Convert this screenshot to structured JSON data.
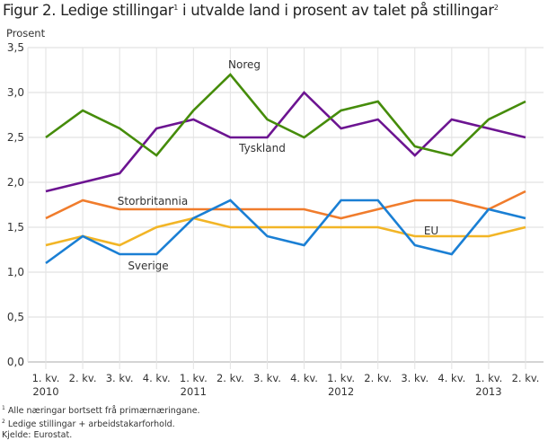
{
  "title": {
    "text": "Figur 2. Ledige stillingar",
    "sup1": "1",
    "mid": " i utvalde land i prosent av talet på stillingar",
    "sup2": "2"
  },
  "footnotes": [
    {
      "sup": "1",
      "text": " Alle næringar bortsett frå primærnæringane."
    },
    {
      "sup": "2",
      "text": " Ledige stillingar + arbeidstakarforhold."
    },
    {
      "sup": "",
      "text": "Kjelde: Eurostat."
    }
  ],
  "chart_data": {
    "type": "line",
    "title": "Figur 2. Ledige stillingar1 i utvalde land i prosent av talet på stillingar2",
    "ylabel": "Prosent",
    "xlabel": "",
    "ylim": [
      0,
      3.5
    ],
    "yticks": [
      "0,0",
      "0,5",
      "1,0",
      "1,5",
      "2,0",
      "2,5",
      "3,0",
      "3,5"
    ],
    "grid": true,
    "legend": "inline labels",
    "categories": [
      [
        "1. kv.",
        "2010"
      ],
      [
        "2. kv.",
        ""
      ],
      [
        "3. kv.",
        ""
      ],
      [
        "4. kv.",
        ""
      ],
      [
        "1. kv.",
        "2011"
      ],
      [
        "2. kv.",
        ""
      ],
      [
        "3. kv.",
        ""
      ],
      [
        "4. kv.",
        ""
      ],
      [
        "1. kv.",
        "2012"
      ],
      [
        "2. kv.",
        ""
      ],
      [
        "3. kv.",
        ""
      ],
      [
        "4. kv.",
        ""
      ],
      [
        "1. kv.",
        "2013"
      ],
      [
        "2. kv.",
        ""
      ]
    ],
    "series": [
      {
        "name": "Noreg",
        "color": "#458c0a",
        "values": [
          2.5,
          2.8,
          2.6,
          2.3,
          2.8,
          3.2,
          2.7,
          2.5,
          2.8,
          2.9,
          2.4,
          2.3,
          2.7,
          2.9
        ]
      },
      {
        "name": "Tyskland",
        "color": "#6c1491",
        "values": [
          1.9,
          2.0,
          2.1,
          2.6,
          2.7,
          2.5,
          2.5,
          3.0,
          2.6,
          2.7,
          2.3,
          2.7,
          2.6,
          2.5
        ]
      },
      {
        "name": "Storbritannia",
        "color": "#f07c2c",
        "values": [
          1.6,
          1.8,
          1.7,
          1.7,
          1.7,
          1.7,
          1.7,
          1.7,
          1.6,
          1.7,
          1.8,
          1.8,
          1.7,
          1.9
        ]
      },
      {
        "name": "EU",
        "color": "#f2b526",
        "values": [
          1.3,
          1.4,
          1.3,
          1.5,
          1.6,
          1.5,
          1.5,
          1.5,
          1.5,
          1.5,
          1.4,
          1.4,
          1.4,
          1.5
        ]
      },
      {
        "name": "Sverige",
        "color": "#1a7fd4",
        "values": [
          1.1,
          1.4,
          1.2,
          1.2,
          1.6,
          1.8,
          1.4,
          1.3,
          1.8,
          1.8,
          1.3,
          1.2,
          1.7,
          1.6
        ]
      }
    ]
  }
}
